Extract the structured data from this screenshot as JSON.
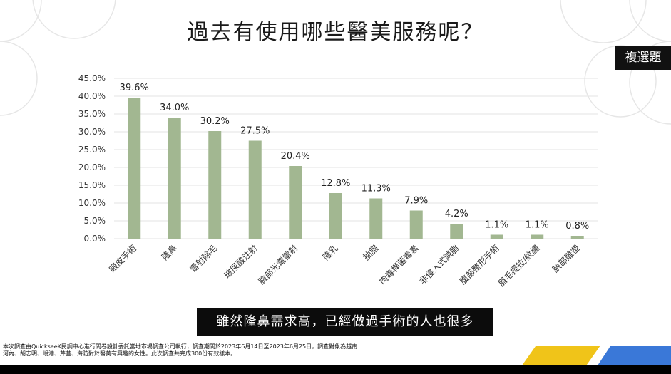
{
  "title": "過去有使用哪些醫美服務呢？",
  "badge": "複選題",
  "caption": "雖然隆鼻需求高，已經做過手術的人也很多",
  "footnote": [
    "本次調查由QuickseeK民調中心進行問卷設計委託當地市場調查公司執行，調查期間於2023年6月14日至2023年6月25日，調查對象為越南",
    "河內、胡志明、峴港、芹苴、海防對於醫美有興趣的女性。此次調查共完成300份有效樣本。"
  ],
  "colors": {
    "bar": "#a2b791",
    "grid": "#e3e3e3",
    "caption_bg": "#0c0c0c",
    "accent_yellow": "#f0c419",
    "accent_blue": "#3a78d8"
  },
  "chart_data": {
    "type": "bar",
    "title": "過去有使用哪些醫美服務呢？",
    "categories": [
      "眼皮手術",
      "隆鼻",
      "雷射除毛",
      "玻尿酸注射",
      "臉部光電雷射",
      "隆乳",
      "抽脂",
      "肉毒桿菌毒素",
      "非侵入式減脂",
      "腹部整形手術",
      "眉毛提拉/紋繡",
      "臉部雕塑"
    ],
    "values": [
      39.6,
      34.0,
      30.2,
      27.5,
      20.4,
      12.8,
      11.3,
      7.9,
      4.2,
      1.1,
      1.1,
      0.8
    ],
    "value_labels": [
      "39.6%",
      "34.0%",
      "30.2%",
      "27.5%",
      "20.4%",
      "12.8%",
      "11.3%",
      "7.9%",
      "4.2%",
      "1.1%",
      "1.1%",
      "0.8%"
    ],
    "y_ticks": [
      "0.0%",
      "5.0%",
      "10.0%",
      "15.0%",
      "20.0%",
      "25.0%",
      "30.0%",
      "35.0%",
      "40.0%",
      "45.0%"
    ],
    "ylim": [
      0,
      45
    ],
    "grid": true,
    "xlabel": "",
    "ylabel": ""
  }
}
